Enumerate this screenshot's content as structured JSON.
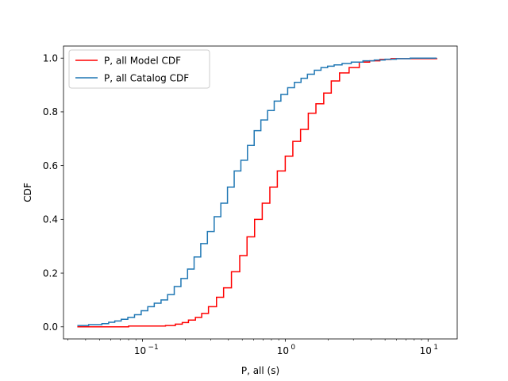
{
  "chart_data": {
    "type": "line",
    "xscale": "log",
    "xlabel": "P, all (s)",
    "ylabel": "CDF",
    "xlim": [
      0.028,
      16
    ],
    "ylim": [
      -0.045,
      1.045
    ],
    "grid": false,
    "legend_position": "top-left",
    "x_ticks": [
      {
        "value": 0.1,
        "base": "10",
        "exp": "−1"
      },
      {
        "value": 1,
        "base": "10",
        "exp": "0"
      },
      {
        "value": 10,
        "base": "10",
        "exp": "1"
      }
    ],
    "y_ticks": [
      {
        "value": 0.0,
        "label": "0.0"
      },
      {
        "value": 0.2,
        "label": "0.2"
      },
      {
        "value": 0.4,
        "label": "0.4"
      },
      {
        "value": 0.6,
        "label": "0.6"
      },
      {
        "value": 0.8,
        "label": "0.8"
      },
      {
        "value": 1.0,
        "label": "1.0"
      }
    ],
    "series": [
      {
        "name": "P, all Model CDF",
        "color": "#ff0000",
        "step": true,
        "x": [
          0.035,
          0.08,
          0.145,
          0.17,
          0.19,
          0.21,
          0.235,
          0.26,
          0.29,
          0.33,
          0.37,
          0.42,
          0.48,
          0.54,
          0.61,
          0.69,
          0.78,
          0.88,
          1.0,
          1.13,
          1.28,
          1.45,
          1.64,
          1.86,
          2.1,
          2.4,
          2.8,
          3.3,
          3.9,
          4.6,
          5.5,
          11.5
        ],
        "y": [
          0.0,
          0.003,
          0.005,
          0.01,
          0.016,
          0.025,
          0.035,
          0.05,
          0.075,
          0.11,
          0.145,
          0.205,
          0.265,
          0.335,
          0.4,
          0.46,
          0.52,
          0.58,
          0.635,
          0.69,
          0.735,
          0.795,
          0.83,
          0.87,
          0.915,
          0.945,
          0.965,
          0.985,
          0.99,
          0.995,
          0.998,
          1.0
        ]
      },
      {
        "name": "P, all Catalog CDF",
        "color": "#1f77b4",
        "step": true,
        "x": [
          0.035,
          0.042,
          0.052,
          0.058,
          0.064,
          0.071,
          0.079,
          0.088,
          0.098,
          0.109,
          0.121,
          0.135,
          0.15,
          0.167,
          0.186,
          0.207,
          0.23,
          0.256,
          0.285,
          0.318,
          0.354,
          0.394,
          0.439,
          0.489,
          0.544,
          0.606,
          0.675,
          0.752,
          0.837,
          0.932,
          1.04,
          1.16,
          1.29,
          1.43,
          1.6,
          1.78,
          1.98,
          2.2,
          2.5,
          2.9,
          3.5,
          4.2,
          5.0,
          6.0,
          7.5,
          11.5
        ],
        "y": [
          0.005,
          0.008,
          0.012,
          0.017,
          0.022,
          0.028,
          0.035,
          0.045,
          0.06,
          0.075,
          0.088,
          0.1,
          0.12,
          0.15,
          0.18,
          0.215,
          0.26,
          0.31,
          0.355,
          0.41,
          0.46,
          0.52,
          0.58,
          0.62,
          0.675,
          0.73,
          0.77,
          0.805,
          0.84,
          0.865,
          0.89,
          0.91,
          0.925,
          0.94,
          0.955,
          0.965,
          0.97,
          0.975,
          0.98,
          0.985,
          0.99,
          0.993,
          0.996,
          0.998,
          1.0,
          1.0
        ]
      }
    ]
  }
}
